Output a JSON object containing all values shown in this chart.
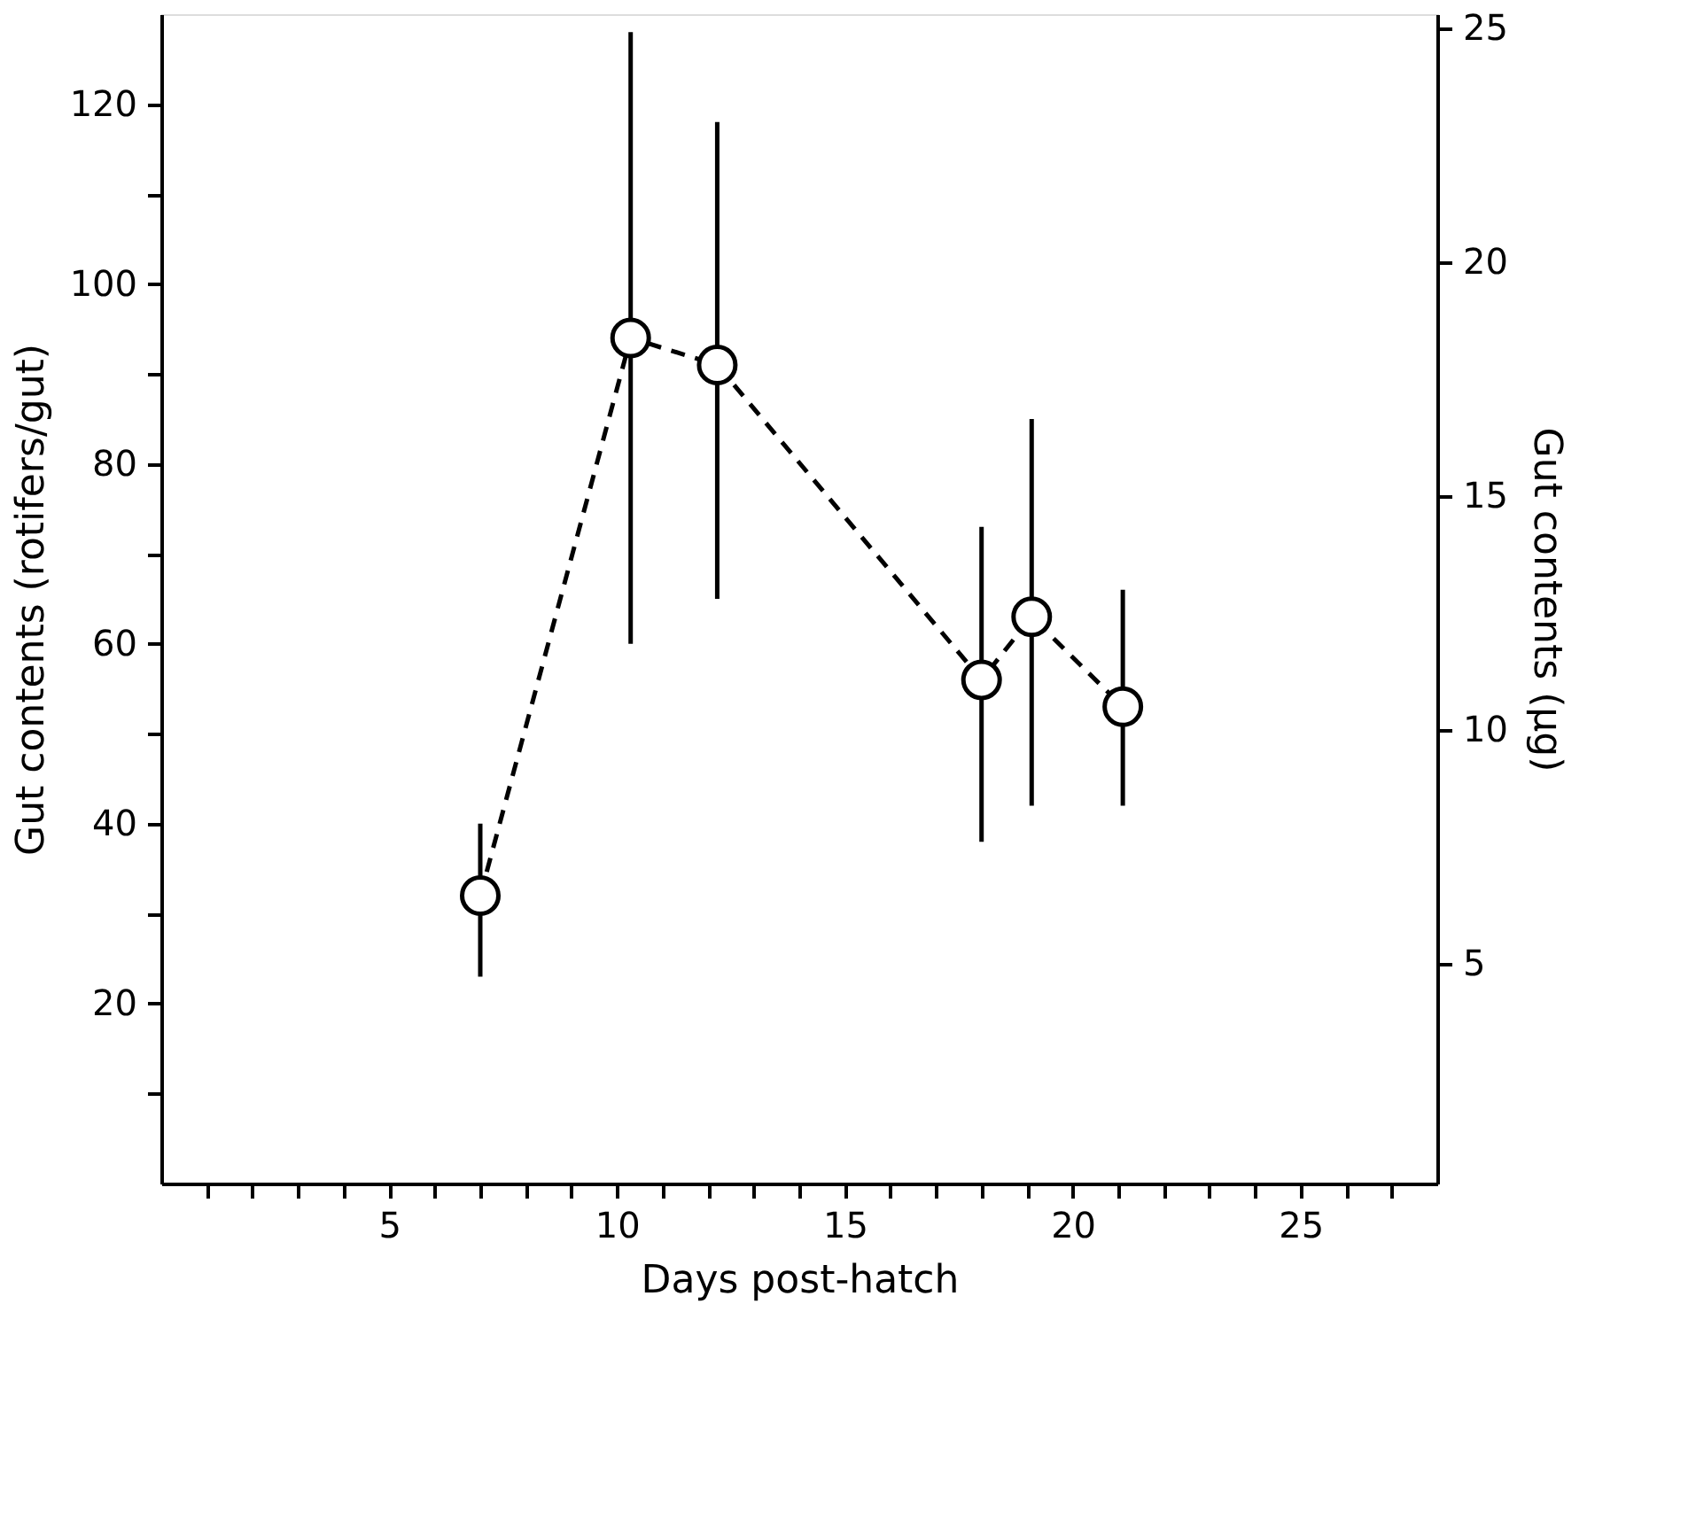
{
  "chart_data": {
    "type": "line",
    "xlabel": "Days post-hatch",
    "ylabel": "Gut contents (rotifers/gut)",
    "y2label": "Gut contents (µg)",
    "x": [
      7,
      10.3,
      12.2,
      18,
      19.1,
      21.1
    ],
    "series": [
      {
        "color": "#000000",
        "values": [
          32,
          94,
          91,
          56,
          63,
          53
        ],
        "errors": [
          [
            23,
            40
          ],
          [
            60,
            128
          ],
          [
            65,
            118
          ],
          [
            38,
            73
          ],
          [
            42,
            85
          ],
          [
            42,
            66
          ]
        ]
      }
    ],
    "marker": "circle",
    "line_style": "dashed",
    "grid": false,
    "xlim": [
      0,
      28
    ],
    "xticks": [
      {
        "value": 1,
        "label": null
      },
      {
        "value": 2,
        "label": null
      },
      {
        "value": 3,
        "label": null
      },
      {
        "value": 4,
        "label": null
      },
      5,
      {
        "value": 6,
        "label": null
      },
      {
        "value": 7,
        "label": null
      },
      {
        "value": 8,
        "label": null
      },
      {
        "value": 9,
        "label": null
      },
      10,
      {
        "value": 11,
        "label": null
      },
      {
        "value": 12,
        "label": null
      },
      {
        "value": 13,
        "label": null
      },
      {
        "value": 14,
        "label": null
      },
      15,
      {
        "value": 16,
        "label": null
      },
      {
        "value": 17,
        "label": null
      },
      {
        "value": 18,
        "label": null
      },
      {
        "value": 19,
        "label": null
      },
      20,
      {
        "value": 21,
        "label": null
      },
      {
        "value": 22,
        "label": null
      },
      {
        "value": 23,
        "label": null
      },
      {
        "value": 24,
        "label": null
      },
      25,
      {
        "value": 26,
        "label": null
      },
      {
        "value": 27,
        "label": null
      }
    ],
    "ylim": [
      0,
      130
    ],
    "yticks": [
      {
        "value": 10,
        "label": null
      },
      20,
      {
        "value": 30,
        "label": null
      },
      40,
      {
        "value": 50,
        "label": null
      },
      60,
      {
        "value": 70,
        "label": null
      },
      80,
      {
        "value": 90,
        "label": null
      },
      100,
      {
        "value": 110,
        "label": null
      },
      120
    ],
    "y2lim": [
      0.3,
      25.3
    ],
    "y2ticks": [
      5,
      10,
      15,
      20,
      25
    ]
  }
}
